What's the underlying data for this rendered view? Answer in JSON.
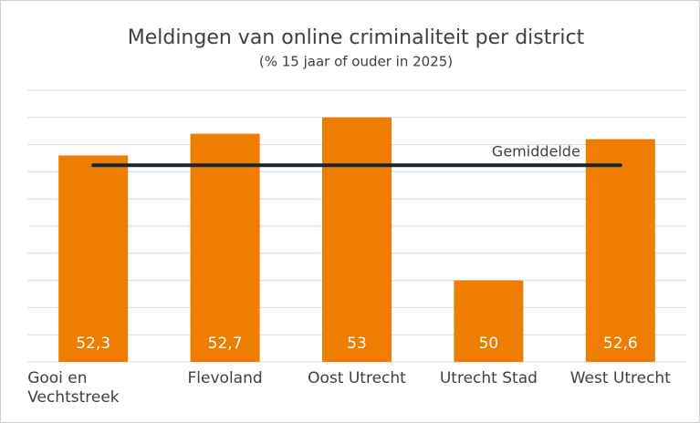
{
  "chart_data": {
    "type": "bar",
    "title": "Meldingen van online criminaliteit per district",
    "subtitle": "(% 15 jaar of ouder in 2025)",
    "categories": [
      "Gooi en\nVechtstreek",
      "Flevoland",
      "Oost Utrecht",
      "Utrecht Stad",
      "West Utrecht"
    ],
    "values": [
      52.3,
      52.7,
      53,
      50,
      52.6
    ],
    "value_labels": [
      "52,3",
      "52,7",
      "53",
      "50",
      "52,6"
    ],
    "color": "#ef7d00",
    "ylim": [
      48.5,
      53.5
    ],
    "yticks": [
      48.5,
      49,
      49.5,
      50,
      50.5,
      51,
      51.5,
      52,
      52.5,
      53,
      53.5
    ],
    "grid": true,
    "reference_line": {
      "label": "Gemiddelde",
      "value": 52.12,
      "color": "#1a2634"
    }
  }
}
